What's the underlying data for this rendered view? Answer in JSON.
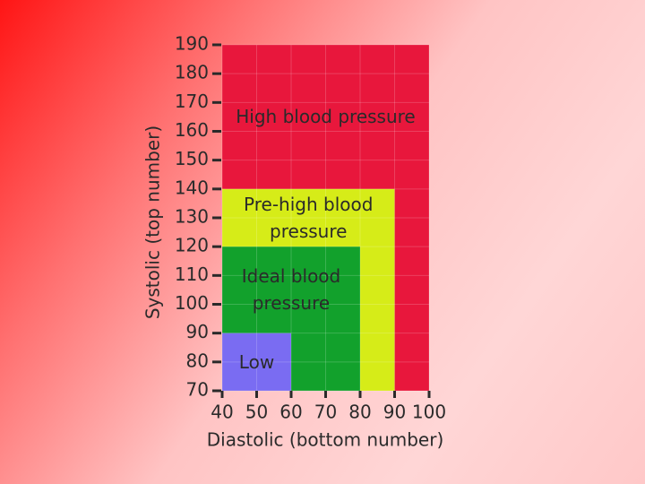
{
  "chart_data": {
    "type": "region",
    "xlabel": "Diastolic (bottom number)",
    "ylabel": "Systolic (top number)",
    "xlim": [
      40,
      100
    ],
    "ylim": [
      70,
      190
    ],
    "xticks": [
      40,
      50,
      60,
      70,
      80,
      90,
      100
    ],
    "yticks": [
      70,
      80,
      90,
      100,
      110,
      120,
      130,
      140,
      150,
      160,
      170,
      180,
      190
    ],
    "grid": true,
    "regions": [
      {
        "name": "High blood pressure",
        "color": "#e8173c",
        "x": [
          40,
          100
        ],
        "y": [
          70,
          190
        ]
      },
      {
        "name": "Pre-high blood pressure",
        "color": "#d6ec18",
        "x": [
          40,
          90
        ],
        "y": [
          70,
          140
        ]
      },
      {
        "name": "Ideal blood pressure",
        "color": "#12a12c",
        "x": [
          40,
          80
        ],
        "y": [
          70,
          120
        ]
      },
      {
        "name": "Low",
        "color": "#7a6cf2",
        "x": [
          40,
          60
        ],
        "y": [
          70,
          90
        ]
      }
    ]
  }
}
